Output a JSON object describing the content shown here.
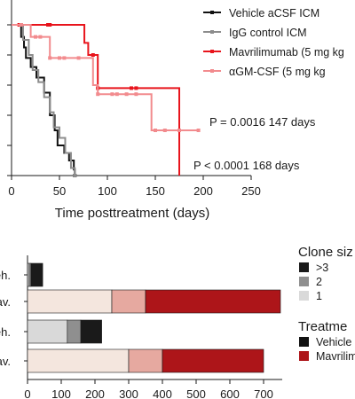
{
  "colors": {
    "vehicle": "#111111",
    "igg": "#8c8c8c",
    "mavrilimumab": "#e8141c",
    "agmcsf": "#f28b8e",
    "clone_gt3": "#1a1a1a",
    "clone_2": "#8f8f8f",
    "clone_1": "#d9d9d9",
    "treatment_vehicle": "#111111",
    "treatment_mavrilimumab": "#ad1519",
    "mav_clone_1": "#f4e6de",
    "mav_clone_2": "#e6a9a0",
    "mav_clone_gt3": "#ad1519"
  },
  "chart_data": [
    {
      "type": "line",
      "subtype": "survival-step",
      "xlabel": "Time posttreatment (days)",
      "ylabel": "",
      "xlim": [
        0,
        250
      ],
      "ylim": [
        0,
        100
      ],
      "xticks": [
        0,
        50,
        100,
        150,
        200,
        250
      ],
      "grid": false,
      "legend_position": "top-right",
      "series": [
        {
          "name": "Vehicle aCSF ICM",
          "x": [
            0,
            10,
            13,
            15,
            20,
            26,
            34,
            40,
            45,
            48,
            55,
            60,
            65,
            66
          ],
          "y": [
            100,
            92,
            85,
            78,
            72,
            65,
            55,
            40,
            30,
            20,
            15,
            10,
            4,
            0
          ],
          "censored_x": [
            66
          ]
        },
        {
          "name": "IgG control ICM",
          "x": [
            0,
            12,
            18,
            22,
            28,
            34,
            40,
            44,
            50,
            56,
            62,
            66
          ],
          "y": [
            100,
            90,
            80,
            70,
            62,
            52,
            42,
            32,
            25,
            15,
            5,
            0
          ],
          "censored_x": [
            66
          ]
        },
        {
          "name": "Mavrilimumab (5 mg kg",
          "x": [
            0,
            8,
            10,
            36,
            38,
            40,
            76,
            80,
            85,
            90,
            94,
            125,
            130,
            170,
            175
          ],
          "y": [
            100,
            100,
            100,
            100,
            100,
            100,
            88,
            80,
            80,
            58,
            58,
            58,
            58,
            58,
            0
          ],
          "censored_x": [
            8,
            10,
            38,
            40,
            85,
            90,
            125,
            130
          ]
        },
        {
          "name": "αGM-CSF (5 mg kg",
          "x": [
            0,
            10,
            20,
            25,
            30,
            36,
            40,
            50,
            55,
            70,
            76,
            85,
            90,
            105,
            110,
            120,
            130,
            146,
            150,
            160,
            175,
            195
          ],
          "y": [
            100,
            100,
            92,
            92,
            92,
            92,
            78,
            78,
            78,
            78,
            78,
            60,
            54,
            54,
            54,
            54,
            54,
            30,
            30,
            30,
            30,
            30
          ],
          "censored_x": [
            10,
            25,
            30,
            40,
            50,
            55,
            70,
            90,
            105,
            110,
            120,
            130,
            150,
            160,
            175,
            195
          ]
        }
      ],
      "annotations": [
        "P = 0.0016 147 days",
        "P < 0.0001 168 days"
      ]
    },
    {
      "type": "bar",
      "orientation": "horizontal",
      "stacked": true,
      "categories": [
        "Veh.",
        "Mav.",
        "Veh.",
        "Mav."
      ],
      "xlim": [
        0,
        750
      ],
      "xticks": [
        0,
        100,
        200,
        300,
        400,
        500,
        600,
        700
      ],
      "legend_titles": [
        "Clone siz",
        "Treatme"
      ],
      "clone_legend": [
        ">3",
        "2",
        "1"
      ],
      "treatment_legend": [
        "Vehicle",
        "Mavrilimu"
      ],
      "series": [
        {
          "name": "1",
          "values": [
            5,
            250,
            118,
            300
          ]
        },
        {
          "name": "2",
          "values": [
            5,
            100,
            40,
            100
          ]
        },
        {
          "name": ">3",
          "values": [
            35,
            400,
            62,
            300
          ]
        }
      ]
    }
  ]
}
